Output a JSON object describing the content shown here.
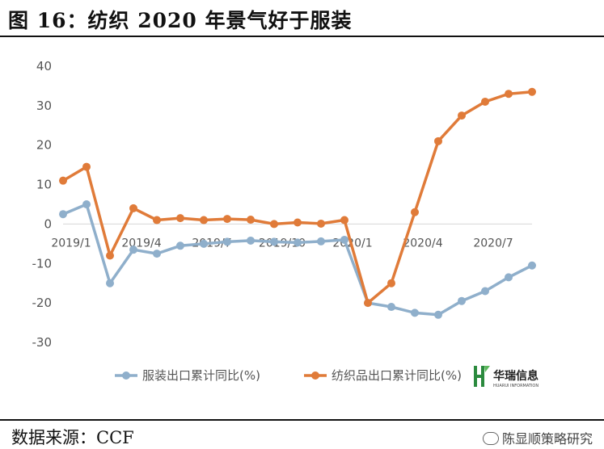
{
  "title": "图 16：纺织 2020 年景气好于服装",
  "source": "数据来源：CCF",
  "watermark": "陈显顺策略研究",
  "logo": {
    "name": "华瑞信息",
    "sub": "HUARUI INFORMATION"
  },
  "chart_data": {
    "type": "line",
    "y_ticks": [
      "40",
      "30",
      "20",
      "10",
      "0",
      "-10",
      "-20",
      "-30"
    ],
    "x_labels": [
      "2019/1",
      "2019/4",
      "2019/7",
      "2019/10",
      "2020/1",
      "2020/4",
      "2020/7"
    ],
    "ylim": [
      -30,
      40
    ],
    "grid": false,
    "legend_position": "bottom",
    "series": [
      {
        "name": "服装出口累计同比(%)",
        "color": "#8FAFCB",
        "values": [
          2.5,
          5,
          -15,
          -6.5,
          -7.5,
          -5.5,
          -5,
          -4.5,
          -4.2,
          -4.5,
          -4.7,
          -4.4,
          -4,
          -20,
          -21,
          -22.5,
          -23,
          -19.5,
          -17,
          -13.5,
          -10.5
        ]
      },
      {
        "name": "纺织品出口累计同比(%)",
        "color": "#E07B39",
        "values": [
          11,
          14.5,
          -8,
          4,
          1,
          1.5,
          1,
          1.3,
          1.1,
          0,
          0.4,
          0.1,
          1,
          -20,
          -15,
          3,
          21,
          27.5,
          31,
          33,
          33.5
        ]
      }
    ]
  }
}
